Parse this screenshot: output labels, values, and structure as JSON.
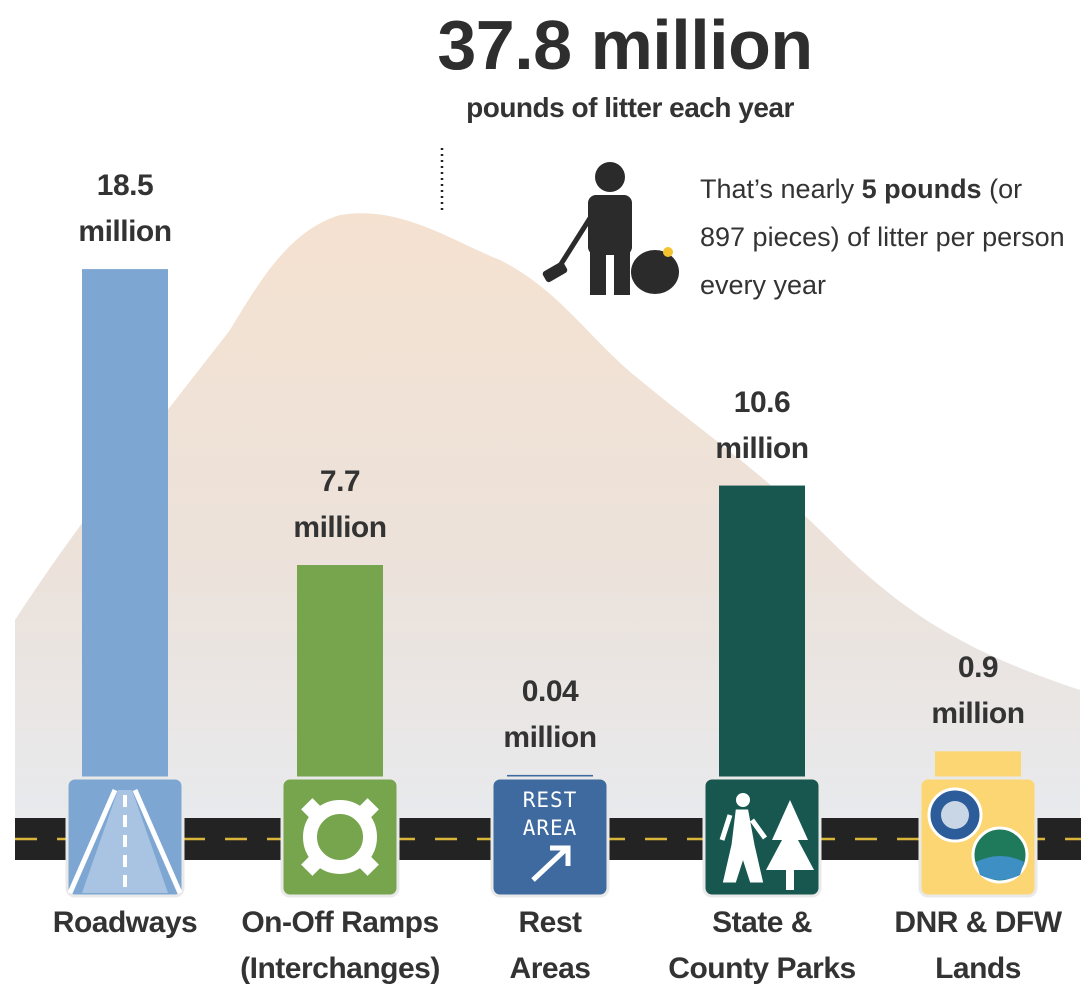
{
  "chart_data": {
    "type": "bar",
    "title": "37.8 million",
    "subtitle": "pounds of litter each year",
    "annotation": {
      "before": "That’s nearly ",
      "bold": "5 pounds",
      "after": " (or 897 pieces) of litter per person every year"
    },
    "categories": [
      "Roadways",
      "On-Off Ramps\n(Interchanges)",
      "Rest\nAreas",
      "State &\nCounty Parks",
      "DNR & DFW\nLands"
    ],
    "values": [
      18.5,
      7.7,
      0.04,
      10.6,
      0.9
    ],
    "value_labels": [
      "18.5\nmillion",
      "7.7\nmillion",
      "0.04\nmillion",
      "10.6\nmillion",
      "0.9\nmillion"
    ],
    "colors": [
      "#7ea6d2",
      "#76a54d",
      "#3e6aa0",
      "#17574f",
      "#fcd672"
    ],
    "ylim": [
      0,
      20
    ],
    "rest_area_sign": "REST\nAREA"
  }
}
